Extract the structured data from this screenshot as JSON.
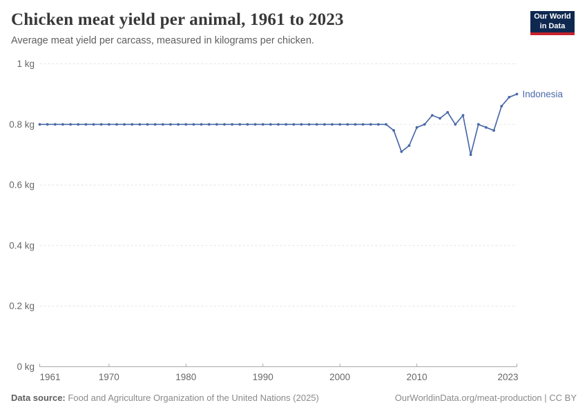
{
  "header": {
    "title": "Chicken meat yield per animal, 1961 to 2023",
    "subtitle": "Average meat yield per carcass, measured in kilograms per chicken."
  },
  "logo": {
    "line1": "Our World",
    "line2": "in Data",
    "bg_color": "#0f2850",
    "stripe_color": "#c8232d"
  },
  "chart_data": {
    "type": "line",
    "title": "Chicken meat yield per animal, 1961 to 2023",
    "xlabel": "",
    "ylabel": "",
    "xlim": [
      1961,
      2023
    ],
    "ylim": [
      0,
      1
    ],
    "grid": "horizontal-dashed",
    "legend_position": "end-of-line-label",
    "xticks": [
      {
        "value": 1961,
        "label": "1961"
      },
      {
        "value": 1970,
        "label": "1970"
      },
      {
        "value": 1980,
        "label": "1980"
      },
      {
        "value": 1990,
        "label": "1990"
      },
      {
        "value": 2000,
        "label": "2000"
      },
      {
        "value": 2010,
        "label": "2010"
      },
      {
        "value": 2023,
        "label": "2023"
      }
    ],
    "yticks": [
      {
        "value": 0,
        "label": "0 kg"
      },
      {
        "value": 0.2,
        "label": "0.2 kg"
      },
      {
        "value": 0.4,
        "label": "0.4 kg"
      },
      {
        "value": 0.6,
        "label": "0.6 kg"
      },
      {
        "value": 0.8,
        "label": "0.8 kg"
      },
      {
        "value": 1,
        "label": "1 kg"
      }
    ],
    "series": [
      {
        "name": "Indonesia",
        "color": "#4a69a8",
        "x": [
          1961,
          1962,
          1963,
          1964,
          1965,
          1966,
          1967,
          1968,
          1969,
          1970,
          1971,
          1972,
          1973,
          1974,
          1975,
          1976,
          1977,
          1978,
          1979,
          1980,
          1981,
          1982,
          1983,
          1984,
          1985,
          1986,
          1987,
          1988,
          1989,
          1990,
          1991,
          1992,
          1993,
          1994,
          1995,
          1996,
          1997,
          1998,
          1999,
          2000,
          2001,
          2002,
          2003,
          2004,
          2005,
          2006,
          2007,
          2008,
          2009,
          2010,
          2011,
          2012,
          2013,
          2014,
          2015,
          2016,
          2017,
          2018,
          2019,
          2020,
          2021,
          2022,
          2023
        ],
        "values": [
          0.8,
          0.8,
          0.8,
          0.8,
          0.8,
          0.8,
          0.8,
          0.8,
          0.8,
          0.8,
          0.8,
          0.8,
          0.8,
          0.8,
          0.8,
          0.8,
          0.8,
          0.8,
          0.8,
          0.8,
          0.8,
          0.8,
          0.8,
          0.8,
          0.8,
          0.8,
          0.8,
          0.8,
          0.8,
          0.8,
          0.8,
          0.8,
          0.8,
          0.8,
          0.8,
          0.8,
          0.8,
          0.8,
          0.8,
          0.8,
          0.8,
          0.8,
          0.8,
          0.8,
          0.8,
          0.8,
          0.78,
          0.71,
          0.73,
          0.79,
          0.8,
          0.83,
          0.82,
          0.84,
          0.8,
          0.83,
          0.7,
          0.8,
          0.79,
          0.78,
          0.86,
          0.89,
          0.9
        ]
      }
    ],
    "colors": {
      "gridline": "#e3e3e3",
      "axis": "#a8a8a8",
      "tick_label": "#676767"
    }
  },
  "footer": {
    "source_label": "Data source:",
    "source_text": " Food and Agriculture Organization of the United Nations (2025)",
    "right_text": "OurWorldinData.org/meat-production | CC BY"
  }
}
